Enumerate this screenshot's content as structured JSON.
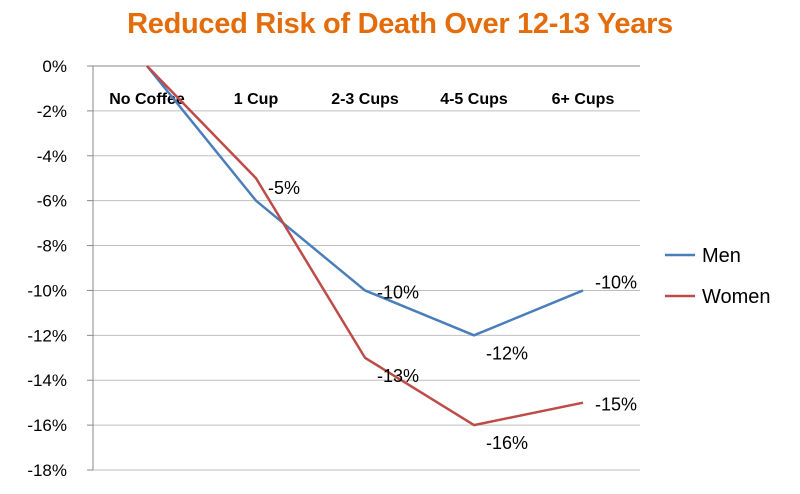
{
  "chart_data": {
    "type": "line",
    "title": "Reduced Risk of Death Over 12-13 Years",
    "title_color": "#E46C0A",
    "categories": [
      "No Coffee",
      "1 Cup",
      "2-3 Cups",
      "4-5 Cups",
      "6+ Cups"
    ],
    "ylim": [
      -18,
      0
    ],
    "ytick_step": 2,
    "ytick_labels": [
      "0%",
      "-2%",
      "-4%",
      "-6%",
      "-8%",
      "-10%",
      "-12%",
      "-14%",
      "-16%",
      "-18%"
    ],
    "grid": true,
    "legend_position": "right",
    "series": [
      {
        "name": "Men",
        "color": "#4A7EBB",
        "values": [
          0,
          -6,
          -10,
          -12,
          -10
        ],
        "labels": [
          "",
          "",
          "-10%",
          "-12%",
          "-10%"
        ]
      },
      {
        "name": "Women",
        "color": "#BE4B48",
        "values": [
          0,
          -5,
          -13,
          -16,
          -15
        ],
        "labels": [
          "",
          "-5%",
          "-13%",
          "-16%",
          "-15%"
        ]
      }
    ]
  }
}
